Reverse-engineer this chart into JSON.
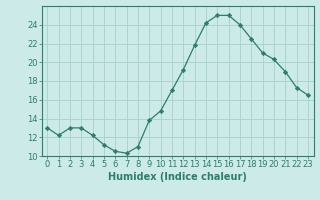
{
  "x": [
    0,
    1,
    2,
    3,
    4,
    5,
    6,
    7,
    8,
    9,
    10,
    11,
    12,
    13,
    14,
    15,
    16,
    17,
    18,
    19,
    20,
    21,
    22,
    23
  ],
  "y": [
    13.0,
    12.2,
    13.0,
    13.0,
    12.2,
    11.2,
    10.5,
    10.3,
    11.0,
    13.8,
    14.8,
    17.0,
    19.2,
    21.8,
    24.2,
    25.0,
    25.0,
    24.0,
    22.5,
    21.0,
    20.3,
    19.0,
    17.3,
    16.5
  ],
  "line_color": "#2e7d6e",
  "marker": "D",
  "marker_size": 2.2,
  "bg_color": "#cceae7",
  "grid_color": "#aad4cf",
  "xlabel": "Humidex (Indice chaleur)",
  "ylim": [
    10,
    26
  ],
  "xlim": [
    -0.5,
    23.5
  ],
  "yticks": [
    10,
    12,
    14,
    16,
    18,
    20,
    22,
    24
  ],
  "xticks": [
    0,
    1,
    2,
    3,
    4,
    5,
    6,
    7,
    8,
    9,
    10,
    11,
    12,
    13,
    14,
    15,
    16,
    17,
    18,
    19,
    20,
    21,
    22,
    23
  ],
  "tick_fontsize": 6.0,
  "xlabel_fontsize": 7.0
}
